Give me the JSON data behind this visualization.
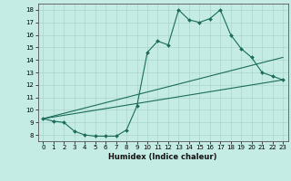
{
  "xlabel": "Humidex (Indice chaleur)",
  "bg_color": "#c5ece4",
  "line_color": "#1a6b5a",
  "grid_color": "#aad4cc",
  "xlim": [
    -0.5,
    23.5
  ],
  "ylim": [
    7.5,
    18.5
  ],
  "yticks": [
    8,
    9,
    10,
    11,
    12,
    13,
    14,
    15,
    16,
    17,
    18
  ],
  "xticks": [
    0,
    1,
    2,
    3,
    4,
    5,
    6,
    7,
    8,
    9,
    10,
    11,
    12,
    13,
    14,
    15,
    16,
    17,
    18,
    19,
    20,
    21,
    22,
    23
  ],
  "line1_x": [
    0,
    1,
    2,
    3,
    4,
    5,
    6,
    7,
    8,
    9,
    10,
    11,
    12,
    13,
    14,
    15,
    16,
    17,
    18,
    19,
    20,
    21,
    22,
    23
  ],
  "line1_y": [
    9.3,
    9.1,
    9.0,
    8.3,
    8.0,
    7.9,
    7.9,
    7.9,
    8.4,
    10.3,
    14.6,
    15.5,
    15.2,
    18.0,
    17.2,
    17.0,
    17.3,
    18.0,
    16.0,
    14.9,
    14.2,
    13.0,
    12.7,
    12.4
  ],
  "line2_x": [
    0,
    23
  ],
  "line2_y": [
    9.3,
    14.2
  ],
  "line3_x": [
    0,
    23
  ],
  "line3_y": [
    9.3,
    12.4
  ],
  "xlabel_fontsize": 6.0,
  "tick_fontsize": 5.0
}
